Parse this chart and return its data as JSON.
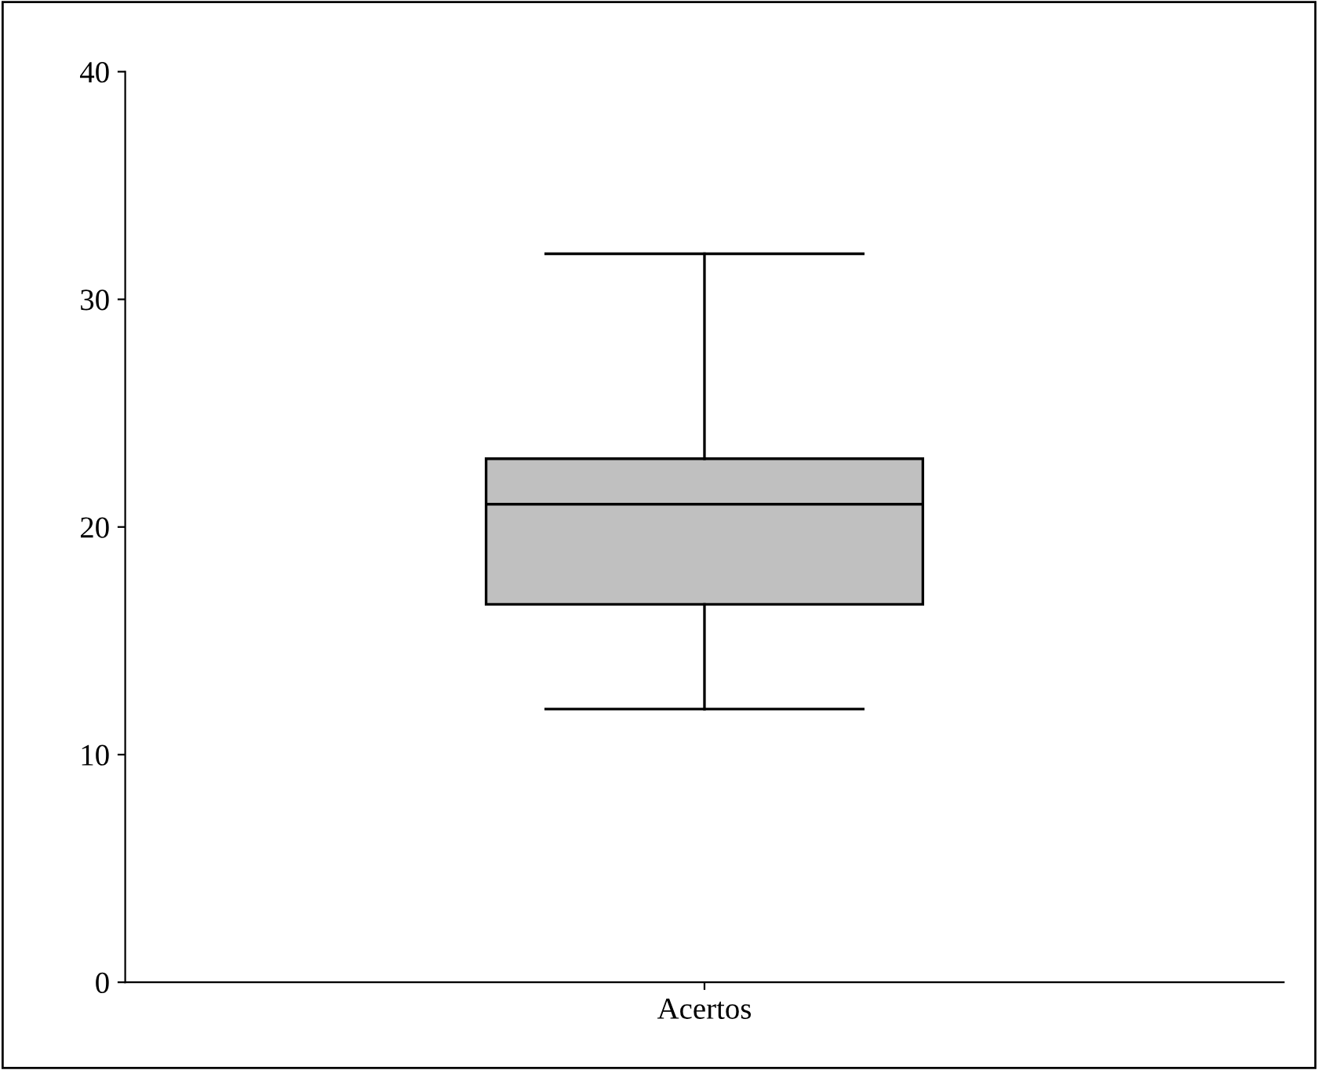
{
  "chart_data": {
    "type": "box",
    "categories": [
      "Acertos"
    ],
    "color": "#c0c0c0",
    "boxes": [
      {
        "low": 12,
        "q1": 16.6,
        "median": 21,
        "q3": 23,
        "high": 32
      }
    ],
    "ylim": [
      0,
      40
    ],
    "yticks": [
      0,
      10,
      20,
      30,
      40
    ],
    "grid": false,
    "legend": false
  }
}
